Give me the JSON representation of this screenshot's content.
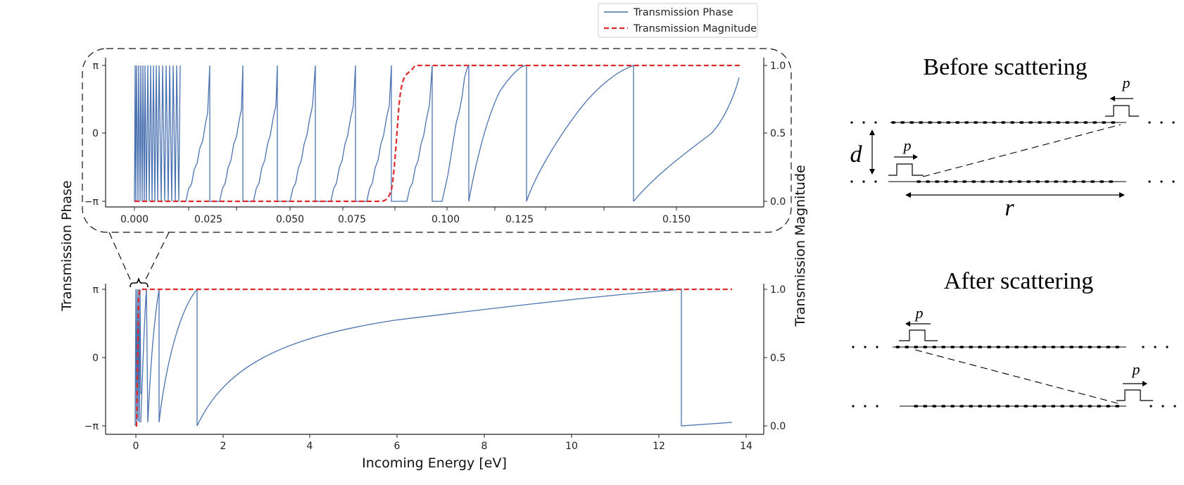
{
  "colors": {
    "phase": "#4a72b0",
    "magnitude": "#e02a2a",
    "axis": "#222222"
  },
  "legend": {
    "position": "top-center",
    "entries": [
      "Transmission Phase",
      "Transmission Magnitude"
    ]
  },
  "shared_labels": {
    "ylabel_left": "Transmission Phase",
    "ylabel_right": "Transmission Magnitude",
    "xlabel": "Incoming Energy [eV]"
  },
  "chart_data": [
    {
      "type": "line",
      "panel": "zoomed inset",
      "title": "",
      "xlim": [
        -0.006,
        0.173
      ],
      "xticks": [
        "0.000",
        "0.025",
        "0.050",
        "0.075",
        "0.100",
        "0.125",
        "0.150"
      ],
      "left_yticks": [
        "π",
        "0",
        "−π"
      ],
      "right_yticks": [
        "1.0",
        "0.5",
        "0.0"
      ],
      "right_ylim": [
        0.0,
        1.0
      ],
      "phase_jumps": [
        0.02,
        0.028,
        0.0375,
        0.0485,
        0.0595,
        0.071,
        0.078,
        0.0945,
        0.1225
      ],
      "phase_end": [
        0.166,
        2.3
      ],
      "magnitude": {
        "x": [
          0.0,
          0.068,
          0.0695,
          0.0705,
          0.072,
          0.0735,
          0.0755,
          0.078,
          0.166
        ],
        "y": [
          0.0,
          0.0,
          0.03,
          0.15,
          0.55,
          0.85,
          0.95,
          1.0,
          1.0
        ]
      },
      "grid": false
    },
    {
      "type": "line",
      "panel": "full range",
      "title": "",
      "xlim": [
        -0.7,
        14.5
      ],
      "xticks": [
        "0",
        "2",
        "4",
        "6",
        "8",
        "10",
        "12",
        "14"
      ],
      "left_yticks": [
        "π",
        "0",
        "−π"
      ],
      "right_yticks": [
        "1.0",
        "0.5",
        "0.0"
      ],
      "right_ylim": [
        0.0,
        1.0
      ],
      "phase_branches": [
        {
          "start": [
            0.1,
            -3.1
          ],
          "end": [
            0.25,
            3.14
          ]
        },
        {
          "start": [
            0.28,
            -3.1
          ],
          "end": [
            0.52,
            3.14
          ]
        },
        {
          "start": [
            0.53,
            -3.14
          ],
          "end": [
            1.4,
            3.14
          ]
        },
        {
          "start": [
            1.4,
            -3.14
          ],
          "end": [
            12.5,
            3.14
          ]
        }
      ],
      "phase_tail": {
        "x": [
          12.5,
          13.7
        ],
        "y": [
          -3.1,
          -2.9
        ]
      },
      "magnitude": {
        "x": [
          0.0,
          0.03,
          0.055,
          0.075,
          0.1,
          13.7
        ],
        "y": [
          0.0,
          0.0,
          0.5,
          0.95,
          1.0,
          1.0
        ]
      },
      "grid": false
    }
  ],
  "diagram": {
    "before_title": "Before scattering",
    "after_title": "After scattering",
    "labels": {
      "momentum": "p",
      "separation": "d",
      "distance": "r"
    }
  }
}
